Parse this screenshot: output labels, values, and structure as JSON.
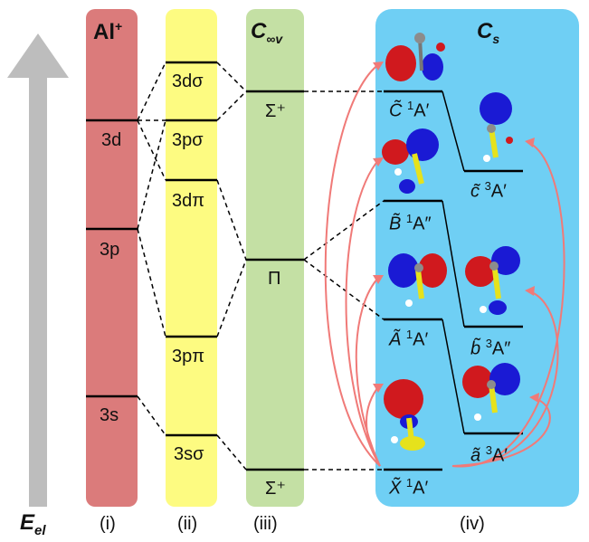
{
  "energy_axis": {
    "label": "E",
    "label_sub": "el",
    "arrow_color": "#bdbdbd"
  },
  "columns": {
    "i": {
      "title": "Al",
      "title_sup": "+",
      "bottom": "(i)",
      "color": "#db7b7b",
      "levels": [
        "3d",
        "3p",
        "3s"
      ]
    },
    "ii": {
      "bottom": "(ii)",
      "color": "#fdfb81",
      "levels": [
        "3dσ",
        "3pσ",
        "3dπ",
        "3pπ",
        "3sσ"
      ]
    },
    "iii": {
      "title": "C",
      "title_sub": "∞v",
      "bottom": "(iii)",
      "color": "#c4e0a4",
      "levels": [
        "Σ⁺",
        "Π",
        "Σ⁺"
      ]
    },
    "iv": {
      "title": "C",
      "title_sub": "s",
      "bottom": "(iv)",
      "color": "#6fcff4",
      "singlets": [
        {
          "sym": "C̃",
          "spin": "1",
          "irrep": "A′"
        },
        {
          "sym": "B̃",
          "spin": "1",
          "irrep": "A″"
        },
        {
          "sym": "Ã",
          "spin": "1",
          "irrep": "A′"
        },
        {
          "sym": "X̃",
          "spin": "1",
          "irrep": "A′"
        }
      ],
      "triplets": [
        {
          "sym": "c̃",
          "spin": "3",
          "irrep": "A′"
        },
        {
          "sym": "b̃",
          "spin": "3",
          "irrep": "A″"
        },
        {
          "sym": "ã",
          "spin": "3",
          "irrep": "A′"
        }
      ]
    }
  },
  "colors": {
    "arrow_red": "#f07a78",
    "orbital_red": "#d0191e",
    "orbital_blue": "#1a1ad4",
    "atom_yellow": "#e6e21c",
    "atom_grey": "#8c8c8c"
  }
}
